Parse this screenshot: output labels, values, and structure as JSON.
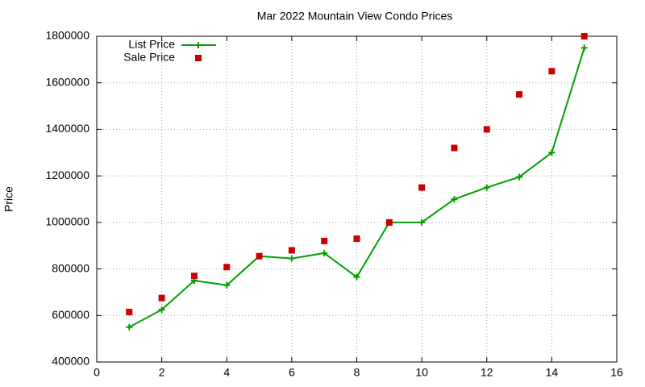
{
  "chart_data": {
    "type": "line",
    "title": "Mar 2022 Mountain View Condo Prices",
    "y_label": "Price",
    "x": [
      1,
      2,
      3,
      4,
      5,
      6,
      7,
      8,
      9,
      10,
      11,
      12,
      13,
      14,
      15
    ],
    "series": [
      {
        "name": "List Price",
        "color": "#00a000",
        "mode": "lines+markers",
        "values": [
          550000,
          625000,
          750000,
          730000,
          855000,
          845000,
          868000,
          765000,
          1000000,
          1000000,
          1100000,
          1150000,
          1195000,
          1300000,
          1750000
        ]
      },
      {
        "name": "Sale Price",
        "color": "#cc0000",
        "mode": "markers",
        "values": [
          615000,
          675000,
          770000,
          808000,
          855000,
          880000,
          920000,
          930000,
          1000000,
          1150000,
          1320000,
          1400000,
          1550000,
          1650000,
          1800000
        ]
      }
    ],
    "xlim": [
      0,
      16
    ],
    "xticks": [
      0,
      2,
      4,
      6,
      8,
      10,
      12,
      14,
      16
    ],
    "ylim": [
      400000,
      1800000
    ],
    "yticks": [
      400000,
      600000,
      800000,
      1000000,
      1200000,
      1400000,
      1600000,
      1800000
    ],
    "grid": true,
    "legend": "top-left"
  }
}
